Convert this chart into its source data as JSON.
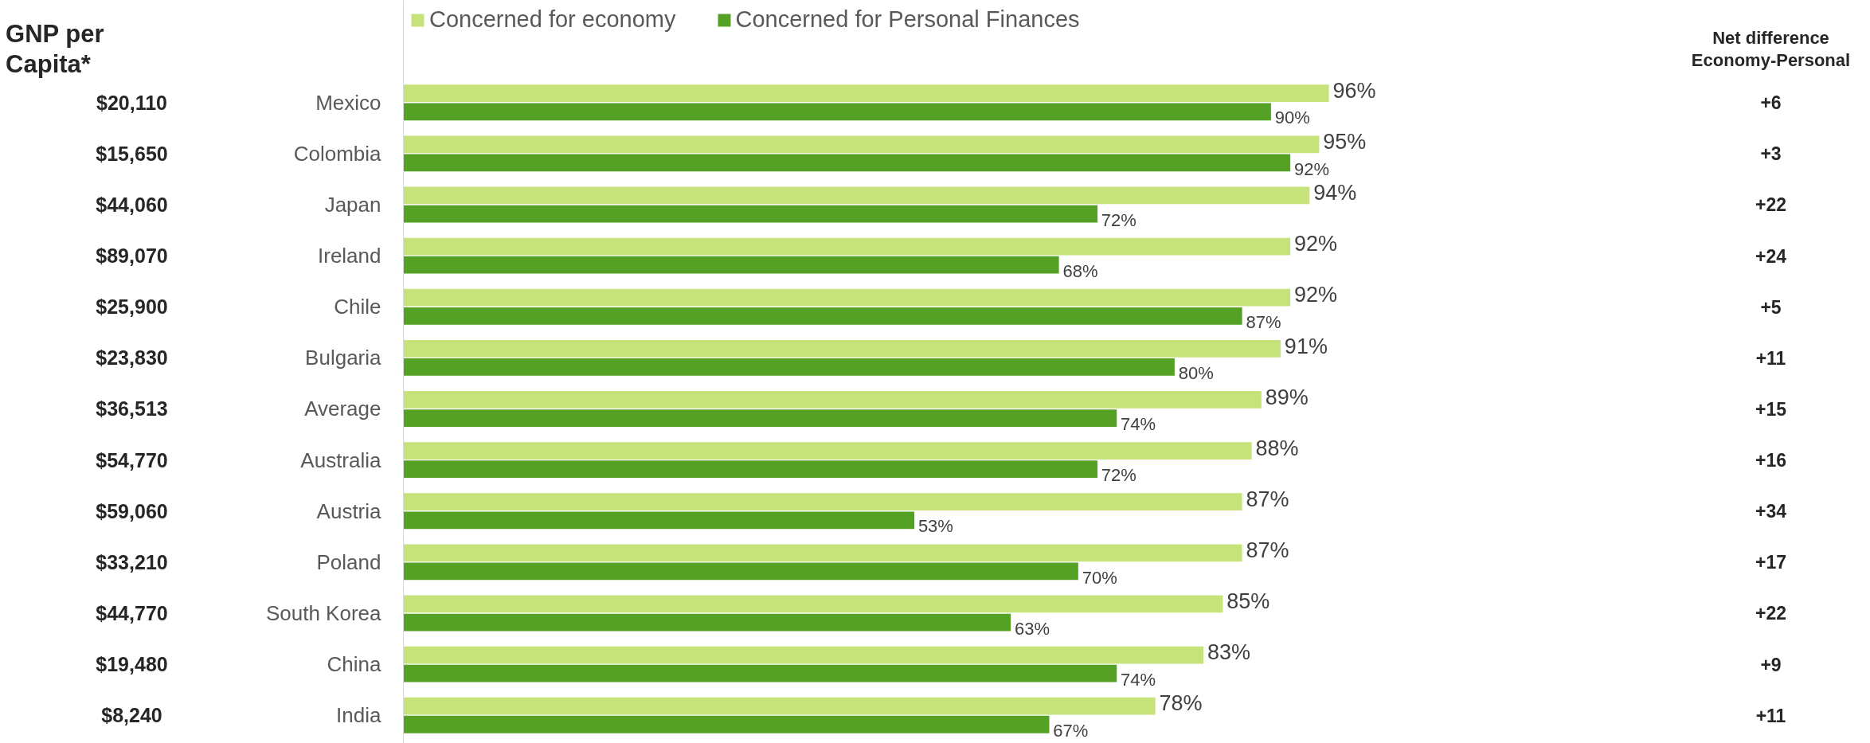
{
  "chart_data": [
    {
      "type": "other",
      "title": "GNP per Capita*",
      "annotations": [
        "$20,110",
        "$15,650",
        "$44,060",
        "$89,070",
        "$25,900",
        "$23,830",
        "$36,513",
        "$54,770",
        "$59,060",
        "$33,210",
        "$44,770",
        "$19,480",
        "$8,240"
      ]
    },
    {
      "type": "bar",
      "orientation": "horizontal",
      "categories": [
        "Mexico",
        "Colombia",
        "Japan",
        "Ireland",
        "Chile",
        "Bulgaria",
        "Average",
        "Australia",
        "Austria",
        "Poland",
        "South Korea",
        "China",
        "India"
      ],
      "series": [
        {
          "name": "Concerned for economy",
          "color": "#c5e37a",
          "values": [
            96,
            95,
            94,
            92,
            92,
            91,
            89,
            88,
            87,
            87,
            85,
            83,
            78
          ],
          "value_labels": [
            "96%",
            "95%",
            "94%",
            "92%",
            "92%",
            "91%",
            "89%",
            "88%",
            "87%",
            "87%",
            "85%",
            "83%",
            "78%"
          ]
        },
        {
          "name": "Concerned for Personal Finances",
          "color": "#54a126",
          "values": [
            90,
            92,
            72,
            68,
            87,
            80,
            74,
            72,
            53,
            70,
            63,
            74,
            67
          ],
          "value_labels": [
            "90%",
            "92%",
            "72%",
            "68%",
            "87%",
            "80%",
            "74%",
            "72%",
            "53%",
            "70%",
            "63%",
            "74%",
            "67%"
          ]
        }
      ],
      "legend": "top",
      "grid": false
    },
    {
      "type": "other",
      "title": "Net difference Economy-Personal",
      "annotations": [
        "+6",
        "+3",
        "+22",
        "+24",
        "+5",
        "+11",
        "+15",
        "+16",
        "+34",
        "+17",
        "+22",
        "+9",
        "+11"
      ]
    }
  ]
}
